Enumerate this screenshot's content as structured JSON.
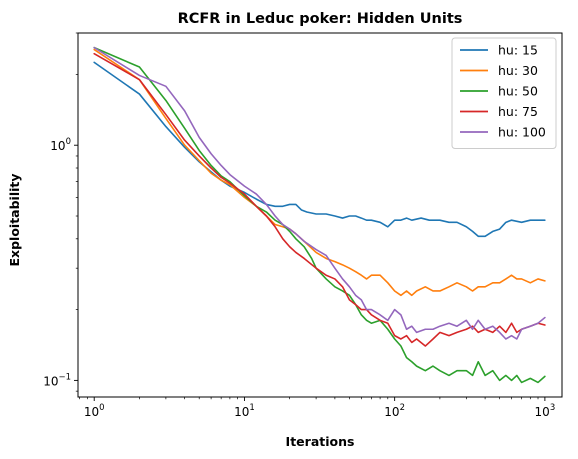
{
  "chart_data": {
    "type": "line",
    "title": "RCFR in Leduc poker: Hidden Units",
    "xlabel": "Iterations",
    "ylabel": "Exploitability",
    "xscale": "log",
    "yscale": "log",
    "xlim": [
      0.78,
      1300
    ],
    "ylim": [
      0.085,
      3.0
    ],
    "xticks": [
      {
        "value": 1,
        "base": "10",
        "exp": "0"
      },
      {
        "value": 10,
        "base": "10",
        "exp": "1"
      },
      {
        "value": 100,
        "base": "10",
        "exp": "2"
      },
      {
        "value": 1000,
        "base": "10",
        "exp": "3"
      }
    ],
    "yticks": [
      {
        "value": 0.1,
        "base": "10",
        "exp": "−1"
      },
      {
        "value": 1,
        "base": "10",
        "exp": "0"
      }
    ],
    "grid": false,
    "legend_position": "top-right",
    "series": [
      {
        "name": "hu: 15",
        "color": "#1f77b4",
        "points": [
          [
            1,
            2.25
          ],
          [
            2,
            1.65
          ],
          [
            3,
            1.2
          ],
          [
            4,
            0.98
          ],
          [
            5,
            0.85
          ],
          [
            6,
            0.77
          ],
          [
            7,
            0.71
          ],
          [
            8,
            0.67
          ],
          [
            10,
            0.63
          ],
          [
            12,
            0.59
          ],
          [
            14,
            0.56
          ],
          [
            16,
            0.55
          ],
          [
            18,
            0.55
          ],
          [
            20,
            0.56
          ],
          [
            22,
            0.56
          ],
          [
            24,
            0.53
          ],
          [
            26,
            0.52
          ],
          [
            30,
            0.51
          ],
          [
            35,
            0.51
          ],
          [
            40,
            0.5
          ],
          [
            45,
            0.49
          ],
          [
            50,
            0.5
          ],
          [
            55,
            0.5
          ],
          [
            60,
            0.49
          ],
          [
            65,
            0.48
          ],
          [
            70,
            0.48
          ],
          [
            80,
            0.47
          ],
          [
            90,
            0.45
          ],
          [
            100,
            0.48
          ],
          [
            110,
            0.48
          ],
          [
            120,
            0.49
          ],
          [
            130,
            0.48
          ],
          [
            150,
            0.49
          ],
          [
            170,
            0.48
          ],
          [
            200,
            0.48
          ],
          [
            230,
            0.47
          ],
          [
            260,
            0.47
          ],
          [
            300,
            0.45
          ],
          [
            330,
            0.43
          ],
          [
            360,
            0.41
          ],
          [
            400,
            0.41
          ],
          [
            450,
            0.43
          ],
          [
            500,
            0.44
          ],
          [
            550,
            0.47
          ],
          [
            600,
            0.48
          ],
          [
            700,
            0.47
          ],
          [
            800,
            0.48
          ],
          [
            900,
            0.48
          ],
          [
            1000,
            0.48
          ]
        ]
      },
      {
        "name": "hu: 30",
        "color": "#ff7f0e",
        "points": [
          [
            1,
            2.55
          ],
          [
            2,
            1.9
          ],
          [
            3,
            1.3
          ],
          [
            4,
            1.0
          ],
          [
            5,
            0.86
          ],
          [
            6,
            0.76
          ],
          [
            7,
            0.71
          ],
          [
            8,
            0.68
          ],
          [
            10,
            0.6
          ],
          [
            12,
            0.55
          ],
          [
            14,
            0.5
          ],
          [
            16,
            0.46
          ],
          [
            18,
            0.45
          ],
          [
            20,
            0.44
          ],
          [
            22,
            0.42
          ],
          [
            25,
            0.39
          ],
          [
            30,
            0.35
          ],
          [
            35,
            0.33
          ],
          [
            40,
            0.32
          ],
          [
            45,
            0.31
          ],
          [
            50,
            0.3
          ],
          [
            55,
            0.29
          ],
          [
            60,
            0.28
          ],
          [
            65,
            0.27
          ],
          [
            70,
            0.28
          ],
          [
            80,
            0.28
          ],
          [
            90,
            0.26
          ],
          [
            100,
            0.24
          ],
          [
            110,
            0.23
          ],
          [
            120,
            0.24
          ],
          [
            130,
            0.23
          ],
          [
            140,
            0.24
          ],
          [
            160,
            0.25
          ],
          [
            180,
            0.24
          ],
          [
            200,
            0.24
          ],
          [
            230,
            0.25
          ],
          [
            260,
            0.26
          ],
          [
            300,
            0.25
          ],
          [
            330,
            0.24
          ],
          [
            360,
            0.25
          ],
          [
            400,
            0.25
          ],
          [
            450,
            0.26
          ],
          [
            500,
            0.26
          ],
          [
            550,
            0.27
          ],
          [
            600,
            0.28
          ],
          [
            650,
            0.27
          ],
          [
            700,
            0.27
          ],
          [
            800,
            0.26
          ],
          [
            900,
            0.27
          ],
          [
            1000,
            0.265
          ]
        ]
      },
      {
        "name": "hu: 50",
        "color": "#2ca02c",
        "points": [
          [
            1,
            2.6
          ],
          [
            2,
            2.15
          ],
          [
            3,
            1.55
          ],
          [
            4,
            1.18
          ],
          [
            5,
            0.95
          ],
          [
            6,
            0.82
          ],
          [
            7,
            0.74
          ],
          [
            8,
            0.7
          ],
          [
            10,
            0.61
          ],
          [
            12,
            0.55
          ],
          [
            14,
            0.52
          ],
          [
            16,
            0.48
          ],
          [
            18,
            0.46
          ],
          [
            20,
            0.43
          ],
          [
            22,
            0.4
          ],
          [
            25,
            0.37
          ],
          [
            28,
            0.33
          ],
          [
            30,
            0.3
          ],
          [
            35,
            0.27
          ],
          [
            40,
            0.25
          ],
          [
            45,
            0.24
          ],
          [
            50,
            0.23
          ],
          [
            55,
            0.21
          ],
          [
            60,
            0.19
          ],
          [
            65,
            0.18
          ],
          [
            70,
            0.175
          ],
          [
            80,
            0.18
          ],
          [
            90,
            0.165
          ],
          [
            100,
            0.15
          ],
          [
            110,
            0.14
          ],
          [
            120,
            0.125
          ],
          [
            130,
            0.12
          ],
          [
            140,
            0.115
          ],
          [
            160,
            0.11
          ],
          [
            180,
            0.115
          ],
          [
            200,
            0.11
          ],
          [
            230,
            0.105
          ],
          [
            260,
            0.11
          ],
          [
            300,
            0.11
          ],
          [
            330,
            0.105
          ],
          [
            360,
            0.12
          ],
          [
            400,
            0.105
          ],
          [
            450,
            0.11
          ],
          [
            500,
            0.1
          ],
          [
            550,
            0.105
          ],
          [
            600,
            0.1
          ],
          [
            650,
            0.105
          ],
          [
            700,
            0.098
          ],
          [
            800,
            0.102
          ],
          [
            900,
            0.098
          ],
          [
            1000,
            0.104
          ]
        ]
      },
      {
        "name": "hu: 75",
        "color": "#d62728",
        "points": [
          [
            1,
            2.45
          ],
          [
            2,
            1.9
          ],
          [
            3,
            1.35
          ],
          [
            4,
            1.05
          ],
          [
            5,
            0.9
          ],
          [
            6,
            0.8
          ],
          [
            7,
            0.73
          ],
          [
            8,
            0.69
          ],
          [
            10,
            0.62
          ],
          [
            12,
            0.55
          ],
          [
            14,
            0.5
          ],
          [
            16,
            0.45
          ],
          [
            18,
            0.4
          ],
          [
            20,
            0.37
          ],
          [
            22,
            0.35
          ],
          [
            25,
            0.33
          ],
          [
            30,
            0.3
          ],
          [
            35,
            0.28
          ],
          [
            40,
            0.27
          ],
          [
            45,
            0.25
          ],
          [
            50,
            0.22
          ],
          [
            55,
            0.21
          ],
          [
            60,
            0.2
          ],
          [
            65,
            0.2
          ],
          [
            70,
            0.19
          ],
          [
            80,
            0.18
          ],
          [
            90,
            0.175
          ],
          [
            100,
            0.155
          ],
          [
            110,
            0.15
          ],
          [
            120,
            0.155
          ],
          [
            130,
            0.145
          ],
          [
            140,
            0.15
          ],
          [
            160,
            0.14
          ],
          [
            180,
            0.15
          ],
          [
            200,
            0.16
          ],
          [
            230,
            0.155
          ],
          [
            260,
            0.16
          ],
          [
            300,
            0.165
          ],
          [
            330,
            0.17
          ],
          [
            360,
            0.16
          ],
          [
            400,
            0.165
          ],
          [
            450,
            0.16
          ],
          [
            500,
            0.17
          ],
          [
            550,
            0.16
          ],
          [
            600,
            0.175
          ],
          [
            650,
            0.16
          ],
          [
            700,
            0.165
          ],
          [
            800,
            0.17
          ],
          [
            900,
            0.175
          ],
          [
            1000,
            0.172
          ]
        ]
      },
      {
        "name": "hu: 100",
        "color": "#9467bd",
        "points": [
          [
            1,
            2.6
          ],
          [
            2,
            1.98
          ],
          [
            3,
            1.78
          ],
          [
            4,
            1.4
          ],
          [
            5,
            1.08
          ],
          [
            6,
            0.92
          ],
          [
            7,
            0.82
          ],
          [
            8,
            0.75
          ],
          [
            10,
            0.67
          ],
          [
            12,
            0.62
          ],
          [
            14,
            0.56
          ],
          [
            16,
            0.5
          ],
          [
            18,
            0.46
          ],
          [
            20,
            0.44
          ],
          [
            22,
            0.42
          ],
          [
            25,
            0.39
          ],
          [
            30,
            0.36
          ],
          [
            35,
            0.34
          ],
          [
            40,
            0.3
          ],
          [
            45,
            0.27
          ],
          [
            50,
            0.25
          ],
          [
            55,
            0.23
          ],
          [
            60,
            0.22
          ],
          [
            65,
            0.2
          ],
          [
            70,
            0.2
          ],
          [
            80,
            0.19
          ],
          [
            90,
            0.18
          ],
          [
            100,
            0.2
          ],
          [
            110,
            0.19
          ],
          [
            120,
            0.165
          ],
          [
            130,
            0.17
          ],
          [
            140,
            0.16
          ],
          [
            160,
            0.165
          ],
          [
            180,
            0.165
          ],
          [
            200,
            0.17
          ],
          [
            230,
            0.175
          ],
          [
            260,
            0.17
          ],
          [
            300,
            0.18
          ],
          [
            330,
            0.165
          ],
          [
            360,
            0.18
          ],
          [
            400,
            0.165
          ],
          [
            450,
            0.17
          ],
          [
            500,
            0.16
          ],
          [
            550,
            0.15
          ],
          [
            600,
            0.155
          ],
          [
            650,
            0.15
          ],
          [
            700,
            0.165
          ],
          [
            800,
            0.17
          ],
          [
            900,
            0.175
          ],
          [
            1000,
            0.185
          ]
        ]
      }
    ]
  }
}
